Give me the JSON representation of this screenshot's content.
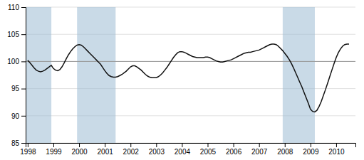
{
  "chart_data": {
    "type": "line",
    "xlim": [
      1997.92,
      2010.75
    ],
    "ylim": [
      85,
      110
    ],
    "yticks": [
      85,
      90,
      95,
      100,
      105,
      110
    ],
    "xticks": [
      1998,
      1999,
      2000,
      2001,
      2002,
      2003,
      2004,
      2005,
      2006,
      2007,
      2008,
      2009,
      2010
    ],
    "grid": true,
    "color": "#111111",
    "hline": 100,
    "shade_regions": [
      [
        1997.92,
        1998.92
      ],
      [
        1999.92,
        2001.42
      ],
      [
        2007.92,
        2009.17
      ]
    ],
    "shade_color": "#9dbcd4",
    "x": [
      1998.0,
      1998.083,
      1998.167,
      1998.25,
      1998.333,
      1998.417,
      1998.5,
      1998.583,
      1998.667,
      1998.75,
      1998.833,
      1998.917,
      1999.0,
      1999.083,
      1999.167,
      1999.25,
      1999.333,
      1999.417,
      1999.5,
      1999.583,
      1999.667,
      1999.75,
      1999.833,
      1999.917,
      2000.0,
      2000.083,
      2000.167,
      2000.25,
      2000.333,
      2000.417,
      2000.5,
      2000.583,
      2000.667,
      2000.75,
      2000.833,
      2000.917,
      2001.0,
      2001.083,
      2001.167,
      2001.25,
      2001.333,
      2001.417,
      2001.5,
      2001.583,
      2001.667,
      2001.75,
      2001.833,
      2001.917,
      2002.0,
      2002.083,
      2002.167,
      2002.25,
      2002.333,
      2002.417,
      2002.5,
      2002.583,
      2002.667,
      2002.75,
      2002.833,
      2002.917,
      2003.0,
      2003.083,
      2003.167,
      2003.25,
      2003.333,
      2003.417,
      2003.5,
      2003.583,
      2003.667,
      2003.75,
      2003.833,
      2003.917,
      2004.0,
      2004.083,
      2004.167,
      2004.25,
      2004.333,
      2004.417,
      2004.5,
      2004.583,
      2004.667,
      2004.75,
      2004.833,
      2004.917,
      2005.0,
      2005.083,
      2005.167,
      2005.25,
      2005.333,
      2005.417,
      2005.5,
      2005.583,
      2005.667,
      2005.75,
      2005.833,
      2005.917,
      2006.0,
      2006.083,
      2006.167,
      2006.25,
      2006.333,
      2006.417,
      2006.5,
      2006.583,
      2006.667,
      2006.75,
      2006.833,
      2006.917,
      2007.0,
      2007.083,
      2007.167,
      2007.25,
      2007.333,
      2007.417,
      2007.5,
      2007.583,
      2007.667,
      2007.75,
      2007.833,
      2007.917,
      2008.0,
      2008.083,
      2008.167,
      2008.25,
      2008.333,
      2008.417,
      2008.5,
      2008.583,
      2008.667,
      2008.75,
      2008.833,
      2008.917,
      2009.0,
      2009.083,
      2009.167,
      2009.25,
      2009.333,
      2009.417,
      2009.5,
      2009.583,
      2009.667,
      2009.75,
      2009.833,
      2009.917,
      2010.0,
      2010.083,
      2010.167,
      2010.25,
      2010.333,
      2010.417,
      2010.5
    ],
    "values": [
      100.2,
      99.8,
      99.3,
      98.8,
      98.4,
      98.2,
      98.1,
      98.2,
      98.4,
      98.7,
      99.0,
      99.3,
      98.7,
      98.4,
      98.3,
      98.5,
      99.0,
      99.7,
      100.5,
      101.2,
      101.8,
      102.3,
      102.7,
      103.0,
      103.1,
      103.0,
      102.7,
      102.3,
      101.9,
      101.5,
      101.1,
      100.7,
      100.3,
      99.9,
      99.5,
      98.9,
      98.3,
      97.8,
      97.4,
      97.2,
      97.1,
      97.1,
      97.2,
      97.4,
      97.6,
      97.9,
      98.2,
      98.6,
      99.0,
      99.2,
      99.2,
      99.0,
      98.7,
      98.4,
      98.0,
      97.6,
      97.3,
      97.1,
      97.0,
      97.0,
      97.0,
      97.2,
      97.5,
      97.9,
      98.4,
      98.9,
      99.5,
      100.1,
      100.7,
      101.2,
      101.6,
      101.8,
      101.8,
      101.7,
      101.5,
      101.3,
      101.1,
      100.9,
      100.8,
      100.7,
      100.7,
      100.7,
      100.7,
      100.8,
      100.8,
      100.7,
      100.5,
      100.3,
      100.1,
      100.0,
      99.9,
      99.9,
      100.0,
      100.1,
      100.2,
      100.3,
      100.5,
      100.7,
      100.9,
      101.1,
      101.3,
      101.5,
      101.6,
      101.7,
      101.7,
      101.8,
      101.9,
      102.0,
      102.1,
      102.3,
      102.5,
      102.7,
      102.9,
      103.1,
      103.2,
      103.2,
      103.1,
      102.8,
      102.4,
      102.0,
      101.5,
      101.0,
      100.4,
      99.7,
      98.9,
      98.0,
      97.1,
      96.2,
      95.3,
      94.3,
      93.3,
      92.3,
      91.2,
      90.8,
      90.7,
      91.0,
      91.7,
      92.6,
      93.7,
      94.8,
      96.0,
      97.2,
      98.4,
      99.6,
      100.7,
      101.6,
      102.3,
      102.8,
      103.1,
      103.2,
      103.2
    ]
  }
}
